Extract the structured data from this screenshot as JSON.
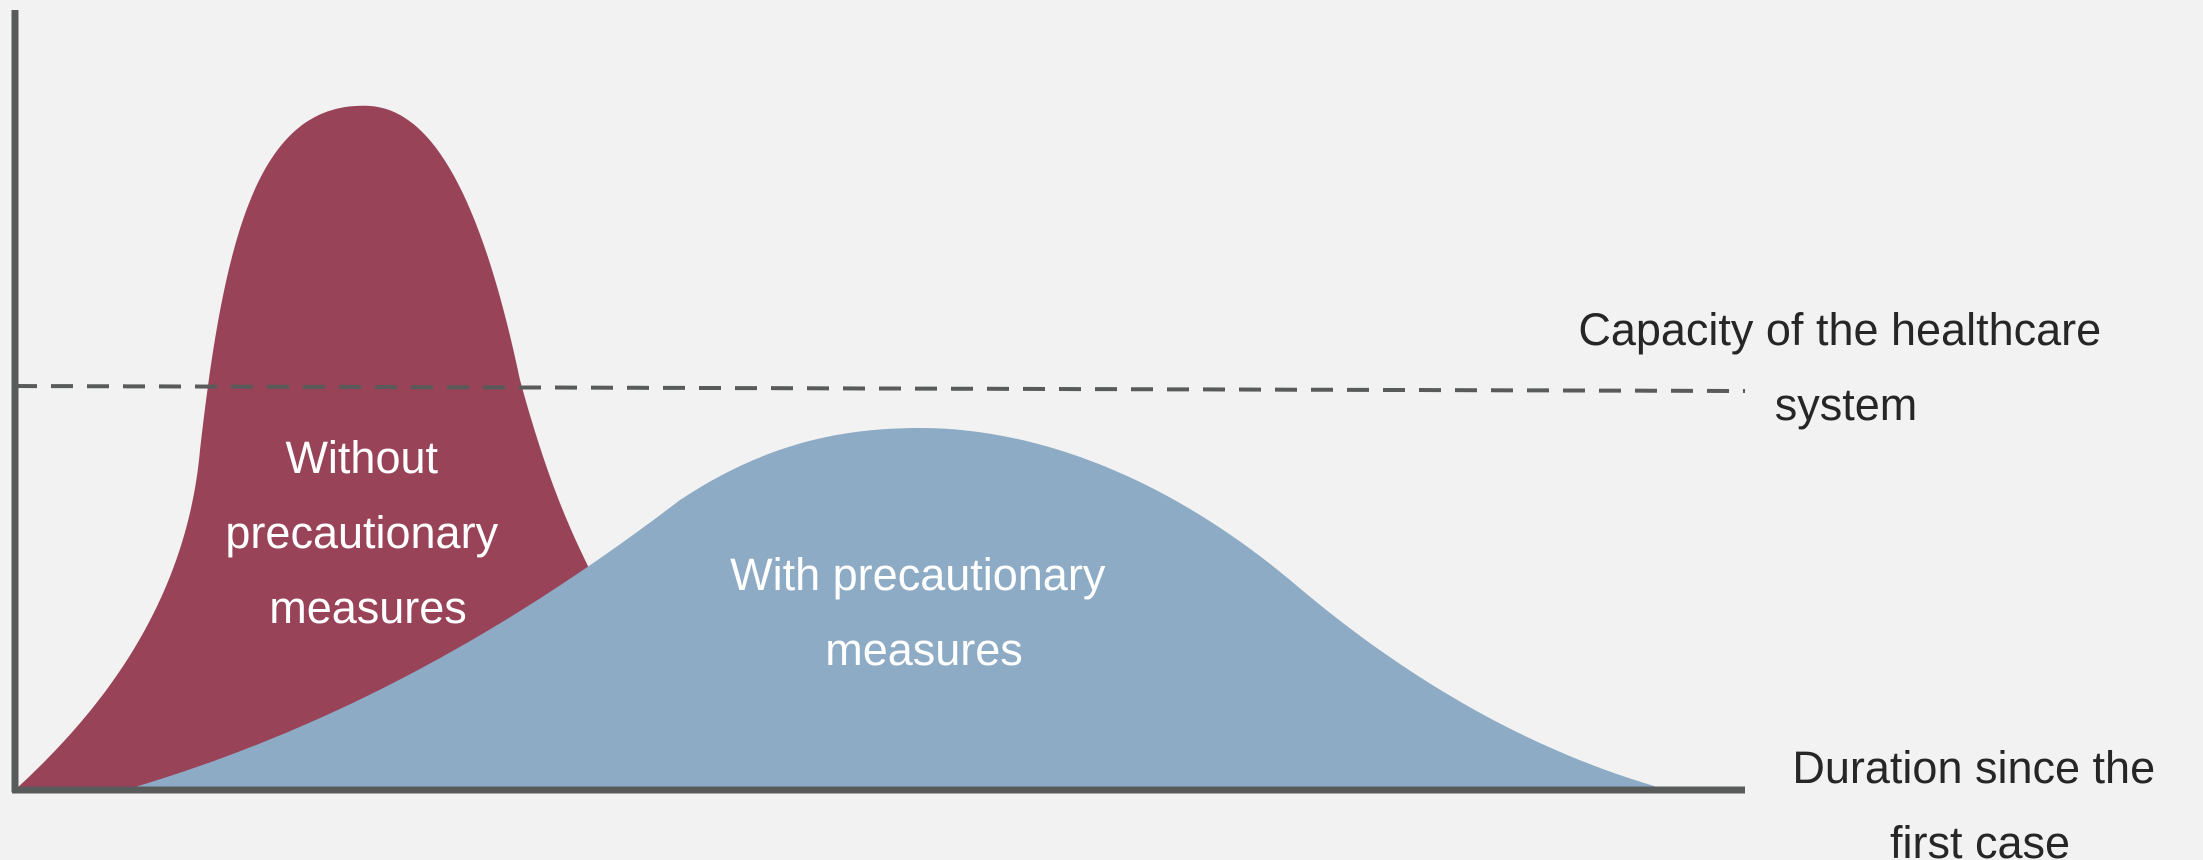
{
  "chart_data": {
    "type": "area",
    "title": "",
    "xlabel": "Duration since the first case",
    "ylabel": "",
    "x_ticks": "none",
    "y_ticks": "none",
    "grid": false,
    "reference_line": {
      "label": "Capacity of the healthcare system",
      "style": "dashed",
      "y": 0.59
    },
    "series": [
      {
        "name": "Without precautionary measures",
        "color": "#984357",
        "peak": {
          "x": 0.205,
          "y": 1.0
        },
        "start_x": 0.0,
        "end_x": 0.34
      },
      {
        "name": "With precautionary measures",
        "color": "#8dabc5",
        "peak": {
          "x": 0.525,
          "y": 0.53
        },
        "start_x": 0.065,
        "end_x": 0.96
      }
    ],
    "colors": {
      "background": "#f2f2f2",
      "axis": "#595b5a",
      "capacity_line": "#595b5a"
    }
  }
}
